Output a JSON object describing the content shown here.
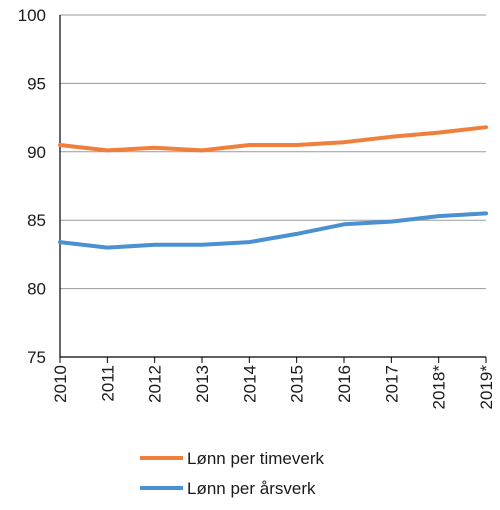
{
  "chart_data": {
    "type": "line",
    "x": [
      "2010",
      "2011",
      "2012",
      "2013",
      "2014",
      "2015",
      "2016",
      "2017",
      "2018*",
      "2019*"
    ],
    "ylim": [
      75,
      100
    ],
    "yticks": [
      75,
      80,
      85,
      90,
      95,
      100
    ],
    "grid": "horizontal",
    "legend_position": "bottom",
    "series": [
      {
        "name": "Lønn per timeverk",
        "color": "#f07f3c",
        "values": [
          90.5,
          90.1,
          90.3,
          90.1,
          90.5,
          90.5,
          90.7,
          91.1,
          91.4,
          91.8
        ]
      },
      {
        "name": "Lønn per årsverk",
        "color": "#4a90d2",
        "values": [
          83.4,
          83.0,
          83.2,
          83.2,
          83.4,
          84.0,
          84.7,
          84.9,
          85.3,
          85.5
        ]
      }
    ]
  }
}
